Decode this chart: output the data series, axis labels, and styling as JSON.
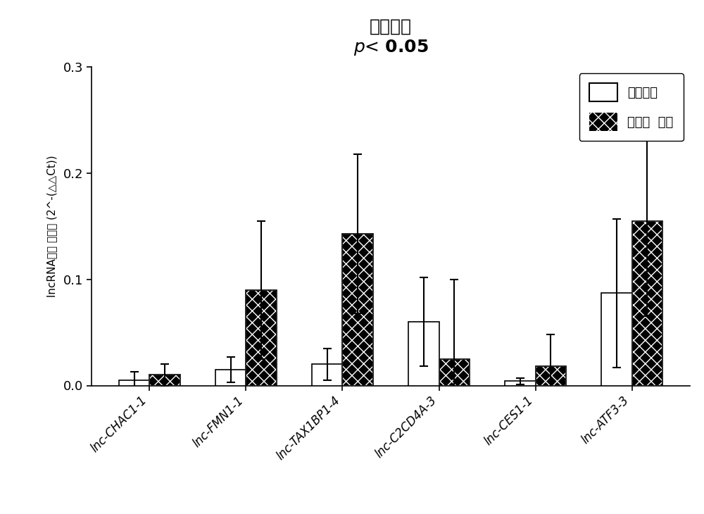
{
  "title_line1": "血蜕组织",
  "title_line2": "p< 0.05",
  "ylabel": "lncRNA相对 表达量 (2^-(△△Ct))",
  "categories": [
    "lnc-CHAC1-1",
    "lnc-FMN1-1",
    "lnc-TAX1BP1-4",
    "lnc-C2CD4A-3",
    "lnc-CES1-1",
    "lnc-ATF3-3"
  ],
  "normal_values": [
    0.005,
    0.015,
    0.02,
    0.06,
    0.004,
    0.087
  ],
  "normal_errors": [
    0.008,
    0.012,
    0.015,
    0.042,
    0.003,
    0.07
  ],
  "recurrent_values": [
    0.01,
    0.09,
    0.143,
    0.025,
    0.018,
    0.155
  ],
  "recurrent_errors": [
    0.01,
    0.065,
    0.075,
    0.075,
    0.03,
    0.09
  ],
  "ylim": [
    0,
    0.3
  ],
  "yticks": [
    0.0,
    0.1,
    0.2,
    0.3
  ],
  "legend_labels": [
    "正常对照",
    "复发性  流产"
  ],
  "bar_width": 0.32,
  "background_color": "#ffffff",
  "normal_color": "#ffffff",
  "normal_edgecolor": "#000000",
  "recurrent_hatch": "xx",
  "figsize": [
    10.0,
    7.3
  ],
  "dpi": 100
}
